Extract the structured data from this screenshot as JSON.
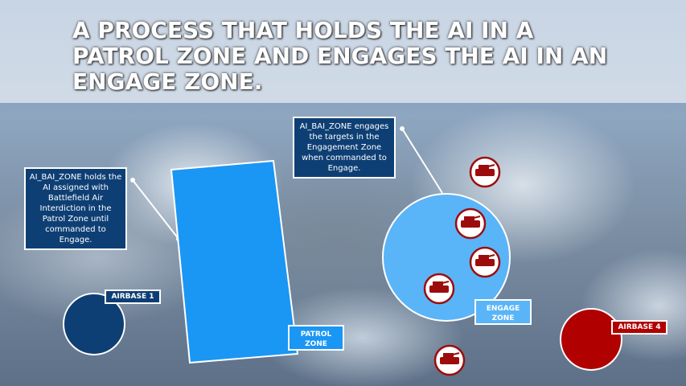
{
  "title": "A PROCESS THAT HOLDS THE AI IN A PATROL ZONE AND ENGAGES THE AI IN AN ENGAGE ZONE.",
  "callouts": {
    "patrol": "AI_BAI_ZONE holds the AI assigned with Battlefield Air Interdiction in the Patrol Zone until commanded to Engage.",
    "engage": "AI_BAI_ZONE engages the targets in the Engagement Zone when commanded to Engage."
  },
  "labels": {
    "airbase1": "AIRBASE 1",
    "airbase4": "AIRBASE 4",
    "patrol_zone": "PATROL ZONE",
    "engage_zone": "ENGAGE ZONE"
  },
  "colors": {
    "blue_side": "#0e3f74",
    "patrol": "#1a96f5",
    "engage": "#5ab4f8",
    "red_side": "#b10000"
  },
  "icons": {
    "target": "tank-icon"
  }
}
